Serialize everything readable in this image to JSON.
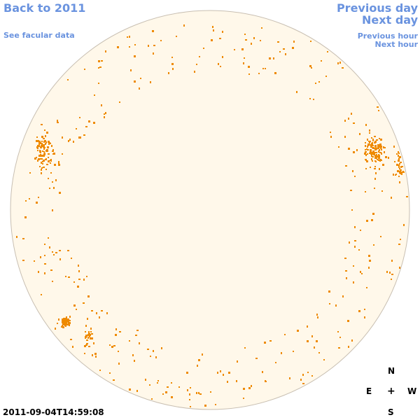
{
  "nav": {
    "back_label": "Back to 2011",
    "facular_label": "See facular data",
    "prev_day_label": "Previous day",
    "next_day_label": "Next day",
    "prev_hour_label": "Previous hour",
    "next_hour_label": "Next hour"
  },
  "compass": {
    "north": "N",
    "east": "E",
    "center": "+",
    "west": "W",
    "south": "S"
  },
  "timestamp": "2011-09-04T14:59:08",
  "colors": {
    "link": "#6a93df",
    "disk_fill": "#fff8ea",
    "disk_border": "#c8bfb2",
    "marker": "#ee8a00"
  }
}
